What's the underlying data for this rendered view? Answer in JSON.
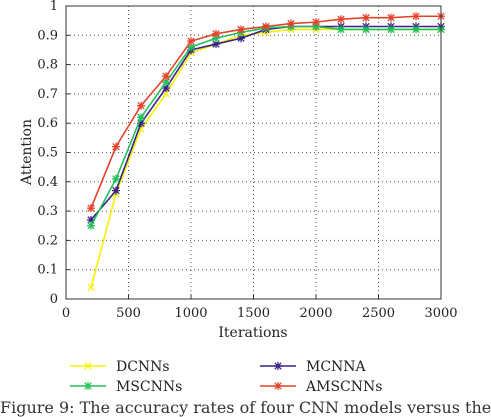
{
  "chart_data": {
    "type": "line",
    "xlabel": "Iterations",
    "ylabel": "Attention",
    "xlim": [
      0,
      3000
    ],
    "ylim": [
      0,
      1
    ],
    "xticks": [
      0,
      500,
      1000,
      1500,
      2000,
      2500,
      3000
    ],
    "yticks": [
      0,
      0.1,
      0.2,
      0.3,
      0.4,
      0.5,
      0.6,
      0.7,
      0.8,
      0.9,
      1
    ],
    "xtick_labels": [
      "0",
      "500",
      "1000",
      "1500",
      "2000",
      "2500",
      "3000"
    ],
    "ytick_labels": [
      "0",
      "0.1",
      "0.2",
      "0.3",
      "0.4",
      "0.5",
      "0.6",
      "0.7",
      "0.8",
      "0.9",
      "1"
    ],
    "grid": "dotted",
    "legend_position": "below",
    "x": [
      200,
      400,
      600,
      800,
      1000,
      1200,
      1400,
      1600,
      1800,
      2000,
      2200,
      2400,
      2600,
      2800,
      3000
    ],
    "series": [
      {
        "name": "DCNNs",
        "color": "#f5f200",
        "marker": "x",
        "values": [
          0.04,
          0.36,
          0.58,
          0.7,
          0.84,
          0.87,
          0.9,
          0.91,
          0.92,
          0.92,
          0.92,
          0.92,
          0.92,
          0.92,
          0.92
        ]
      },
      {
        "name": "MCNNA",
        "color": "#3a1f8a",
        "marker": "*",
        "values": [
          0.27,
          0.37,
          0.6,
          0.72,
          0.85,
          0.87,
          0.89,
          0.92,
          0.93,
          0.93,
          0.93,
          0.93,
          0.93,
          0.93,
          0.93
        ]
      },
      {
        "name": "MSCNNs",
        "color": "#22c05a",
        "marker": "*",
        "values": [
          0.25,
          0.41,
          0.62,
          0.74,
          0.86,
          0.89,
          0.91,
          0.925,
          0.93,
          0.93,
          0.92,
          0.92,
          0.92,
          0.92,
          0.92
        ]
      },
      {
        "name": "AMSCNNs",
        "color": "#e5422a",
        "marker": "*",
        "values": [
          0.31,
          0.52,
          0.66,
          0.76,
          0.88,
          0.905,
          0.92,
          0.93,
          0.94,
          0.945,
          0.955,
          0.96,
          0.96,
          0.965,
          0.965
        ]
      }
    ]
  },
  "caption": "Figure 9: The accuracy rates of four CNN models versus the"
}
